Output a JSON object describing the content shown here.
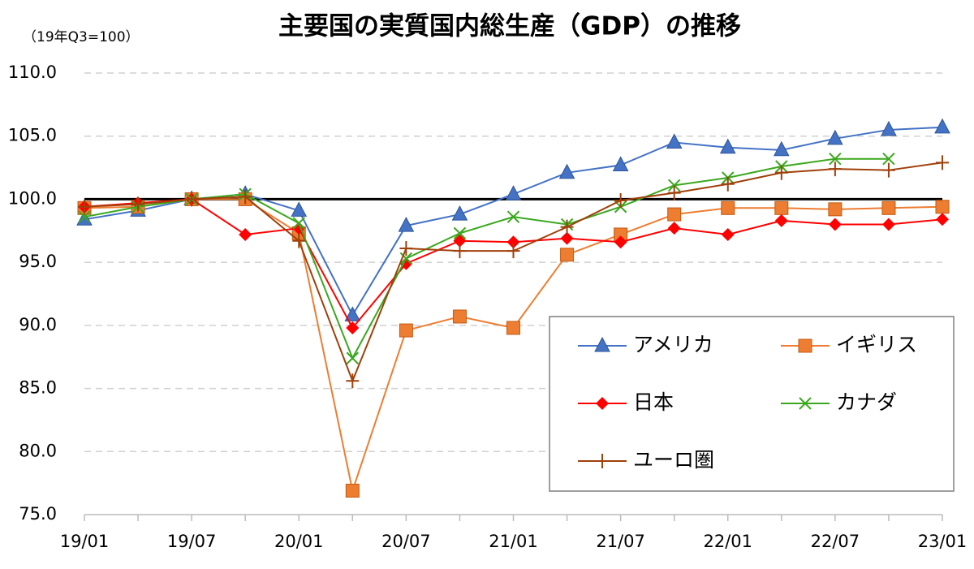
{
  "chart_data": {
    "type": "line",
    "title": "主要国の実質国内総生産（GDP）の推移",
    "subtitle": "（19年Q3=100）",
    "categories": [
      "19/01",
      null,
      "19/07",
      null,
      "20/01",
      null,
      "20/07",
      null,
      "21/01",
      null,
      "21/07",
      null,
      "22/01",
      null,
      "22/07",
      null,
      "23/01"
    ],
    "ylim": [
      75,
      110
    ],
    "yticks": [
      {
        "value": 75,
        "label": "75.0"
      },
      {
        "value": 80,
        "label": "80.0"
      },
      {
        "value": 85,
        "label": "85.0"
      },
      {
        "value": 90,
        "label": "90.0"
      },
      {
        "value": 95,
        "label": "95.0"
      },
      {
        "value": 100,
        "label": "100.0"
      },
      {
        "value": 105,
        "label": "105.0"
      },
      {
        "value": 110,
        "label": "110.0"
      }
    ],
    "grid": true,
    "reference_line": 100,
    "legend": "lower right",
    "series": [
      {
        "name": "アメリカ",
        "color": "#4472c4",
        "marker": "triangle",
        "values": [
          98.4,
          99.1,
          100,
          100.4,
          99.1,
          90.8,
          97.9,
          98.8,
          100.4,
          102.1,
          102.7,
          104.5,
          104.1,
          103.9,
          104.8,
          105.5,
          105.7
        ]
      },
      {
        "name": "イギリス",
        "color": "#ed7d31",
        "marker": "square",
        "values": [
          99.3,
          99.4,
          100,
          100.0,
          97.3,
          76.9,
          89.6,
          90.7,
          89.8,
          95.6,
          97.2,
          98.8,
          99.3,
          99.3,
          99.2,
          99.3,
          99.4
        ]
      },
      {
        "name": "日本",
        "color": "#ff0000",
        "marker": "diamond",
        "values": [
          99.4,
          99.7,
          100,
          97.2,
          97.7,
          89.8,
          94.9,
          96.7,
          96.6,
          96.9,
          96.6,
          97.7,
          97.2,
          98.3,
          98.0,
          98.0,
          98.4
        ]
      },
      {
        "name": "カナダ",
        "color": "#3aa81e",
        "marker": "x",
        "values": [
          98.6,
          99.4,
          100,
          100.4,
          98.1,
          87.4,
          95.3,
          97.3,
          98.6,
          98.0,
          99.4,
          101.1,
          101.7,
          102.6,
          103.2,
          103.2,
          null
        ]
      },
      {
        "name": "ユーロ圏",
        "color": "#a0400a",
        "marker": "plus",
        "values": [
          99.4,
          99.6,
          100,
          100.2,
          96.7,
          85.6,
          96.1,
          95.9,
          95.9,
          97.8,
          99.9,
          100.5,
          101.2,
          102.1,
          102.4,
          102.3,
          102.9
        ]
      }
    ]
  }
}
